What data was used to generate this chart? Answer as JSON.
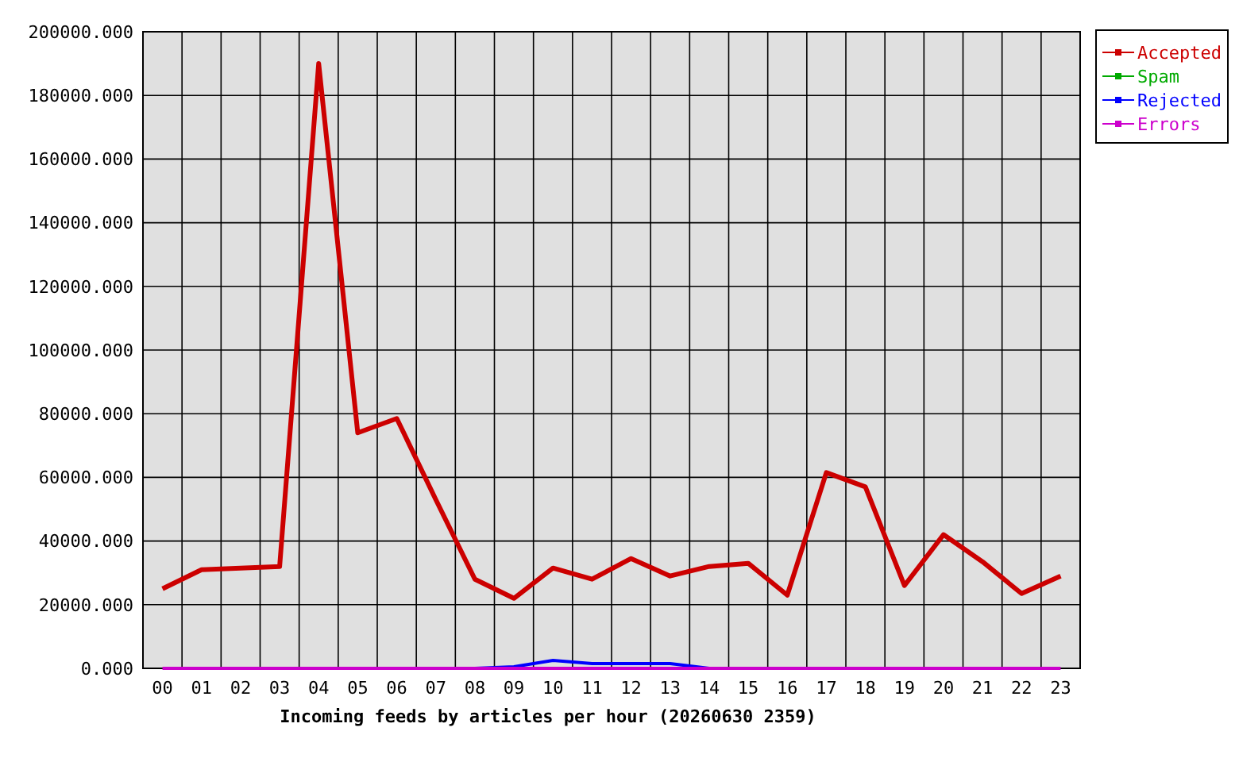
{
  "chart_data": {
    "type": "line",
    "xlabel": "Incoming feeds by articles per hour (20260630 2359)",
    "categories": [
      "00",
      "01",
      "02",
      "03",
      "04",
      "05",
      "06",
      "07",
      "08",
      "09",
      "10",
      "11",
      "12",
      "13",
      "14",
      "15",
      "16",
      "17",
      "18",
      "19",
      "20",
      "21",
      "22",
      "23"
    ],
    "series": [
      {
        "name": "Accepted",
        "color": "#cc0000",
        "values": [
          25000,
          31000,
          31500,
          32000,
          190000,
          74000,
          78500,
          53000,
          28000,
          22000,
          31500,
          28000,
          34500,
          29000,
          32000,
          33000,
          23000,
          61500,
          57000,
          26000,
          42000,
          33500,
          23500,
          29000
        ]
      },
      {
        "name": "Spam",
        "color": "#00aa00",
        "values": [
          null,
          null,
          null,
          null,
          null,
          null,
          null,
          null,
          null,
          null,
          null,
          null,
          null,
          null,
          null,
          null,
          null,
          null,
          null,
          null,
          null,
          null,
          null,
          null
        ]
      },
      {
        "name": "Rejected",
        "color": "#0000ff",
        "values": [
          null,
          null,
          null,
          null,
          null,
          null,
          null,
          null,
          0,
          500,
          2500,
          1500,
          1500,
          1500,
          0,
          null,
          null,
          null,
          null,
          null,
          null,
          null,
          null,
          null
        ]
      },
      {
        "name": "Errors",
        "color": "#cc00cc",
        "values": [
          0,
          0,
          0,
          0,
          0,
          0,
          0,
          0,
          0,
          0,
          0,
          0,
          0,
          0,
          0,
          0,
          0,
          0,
          0,
          0,
          0,
          0,
          0,
          0
        ]
      }
    ],
    "ylim": [
      0,
      200000
    ],
    "yticks": [
      {
        "value": 0,
        "label": "0.000"
      },
      {
        "value": 20000,
        "label": "20000.000"
      },
      {
        "value": 40000,
        "label": "40000.000"
      },
      {
        "value": 60000,
        "label": "60000.000"
      },
      {
        "value": 80000,
        "label": "80000.000"
      },
      {
        "value": 100000,
        "label": "100000.000"
      },
      {
        "value": 120000,
        "label": "120000.000"
      },
      {
        "value": 140000,
        "label": "140000.000"
      },
      {
        "value": 160000,
        "label": "160000.000"
      },
      {
        "value": 180000,
        "label": "180000.000"
      },
      {
        "value": 200000,
        "label": "200000.000"
      }
    ],
    "grid": true,
    "legend": "top right",
    "marker": "none",
    "line_style": "solid"
  }
}
